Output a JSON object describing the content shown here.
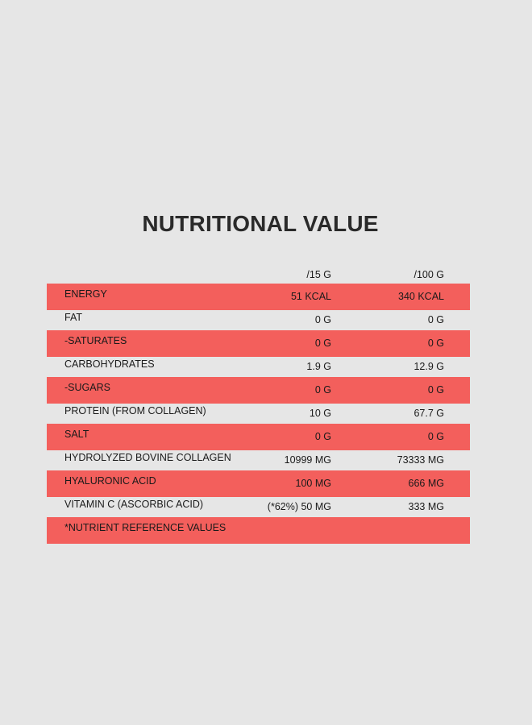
{
  "title": "NUTRITIONAL VALUE",
  "accent_color": "#f35f5c",
  "background_color": "#e6e6e6",
  "columns": [
    "/15 G",
    "/100 G"
  ],
  "rows": [
    {
      "name": "ENERGY",
      "per_15g": "51 KCAL",
      "per_100g": "340 KCAL",
      "highlight": true
    },
    {
      "name": "FAT",
      "per_15g": "0 G",
      "per_100g": "0 G",
      "highlight": false
    },
    {
      "name": "-SATURATES",
      "per_15g": "0 G",
      "per_100g": "0 G",
      "highlight": true
    },
    {
      "name": "CARBOHYDRATES",
      "per_15g": "1.9 G",
      "per_100g": "12.9 G",
      "highlight": false
    },
    {
      "name": "-SUGARS",
      "per_15g": "0 G",
      "per_100g": "0 G",
      "highlight": true
    },
    {
      "name": "PROTEIN (FROM COLLAGEN)",
      "per_15g": "10 G",
      "per_100g": "67.7 G",
      "highlight": false
    },
    {
      "name": "SALT",
      "per_15g": "0 G",
      "per_100g": "0 G",
      "highlight": true
    },
    {
      "name": "HYDROLYZED BOVINE COLLAGEN",
      "per_15g": "10999 MG",
      "per_100g": "73333 MG",
      "highlight": false
    },
    {
      "name": "HYALURONIC ACID",
      "per_15g": "100 MG",
      "per_100g": "666 MG",
      "highlight": true
    },
    {
      "name": "VITAMIN C (ASCORBIC ACID)",
      "per_15g": "(*62%) 50 MG",
      "per_100g": "333 MG",
      "highlight": false
    }
  ],
  "footnote": "*NUTRIENT REFERENCE VALUES"
}
